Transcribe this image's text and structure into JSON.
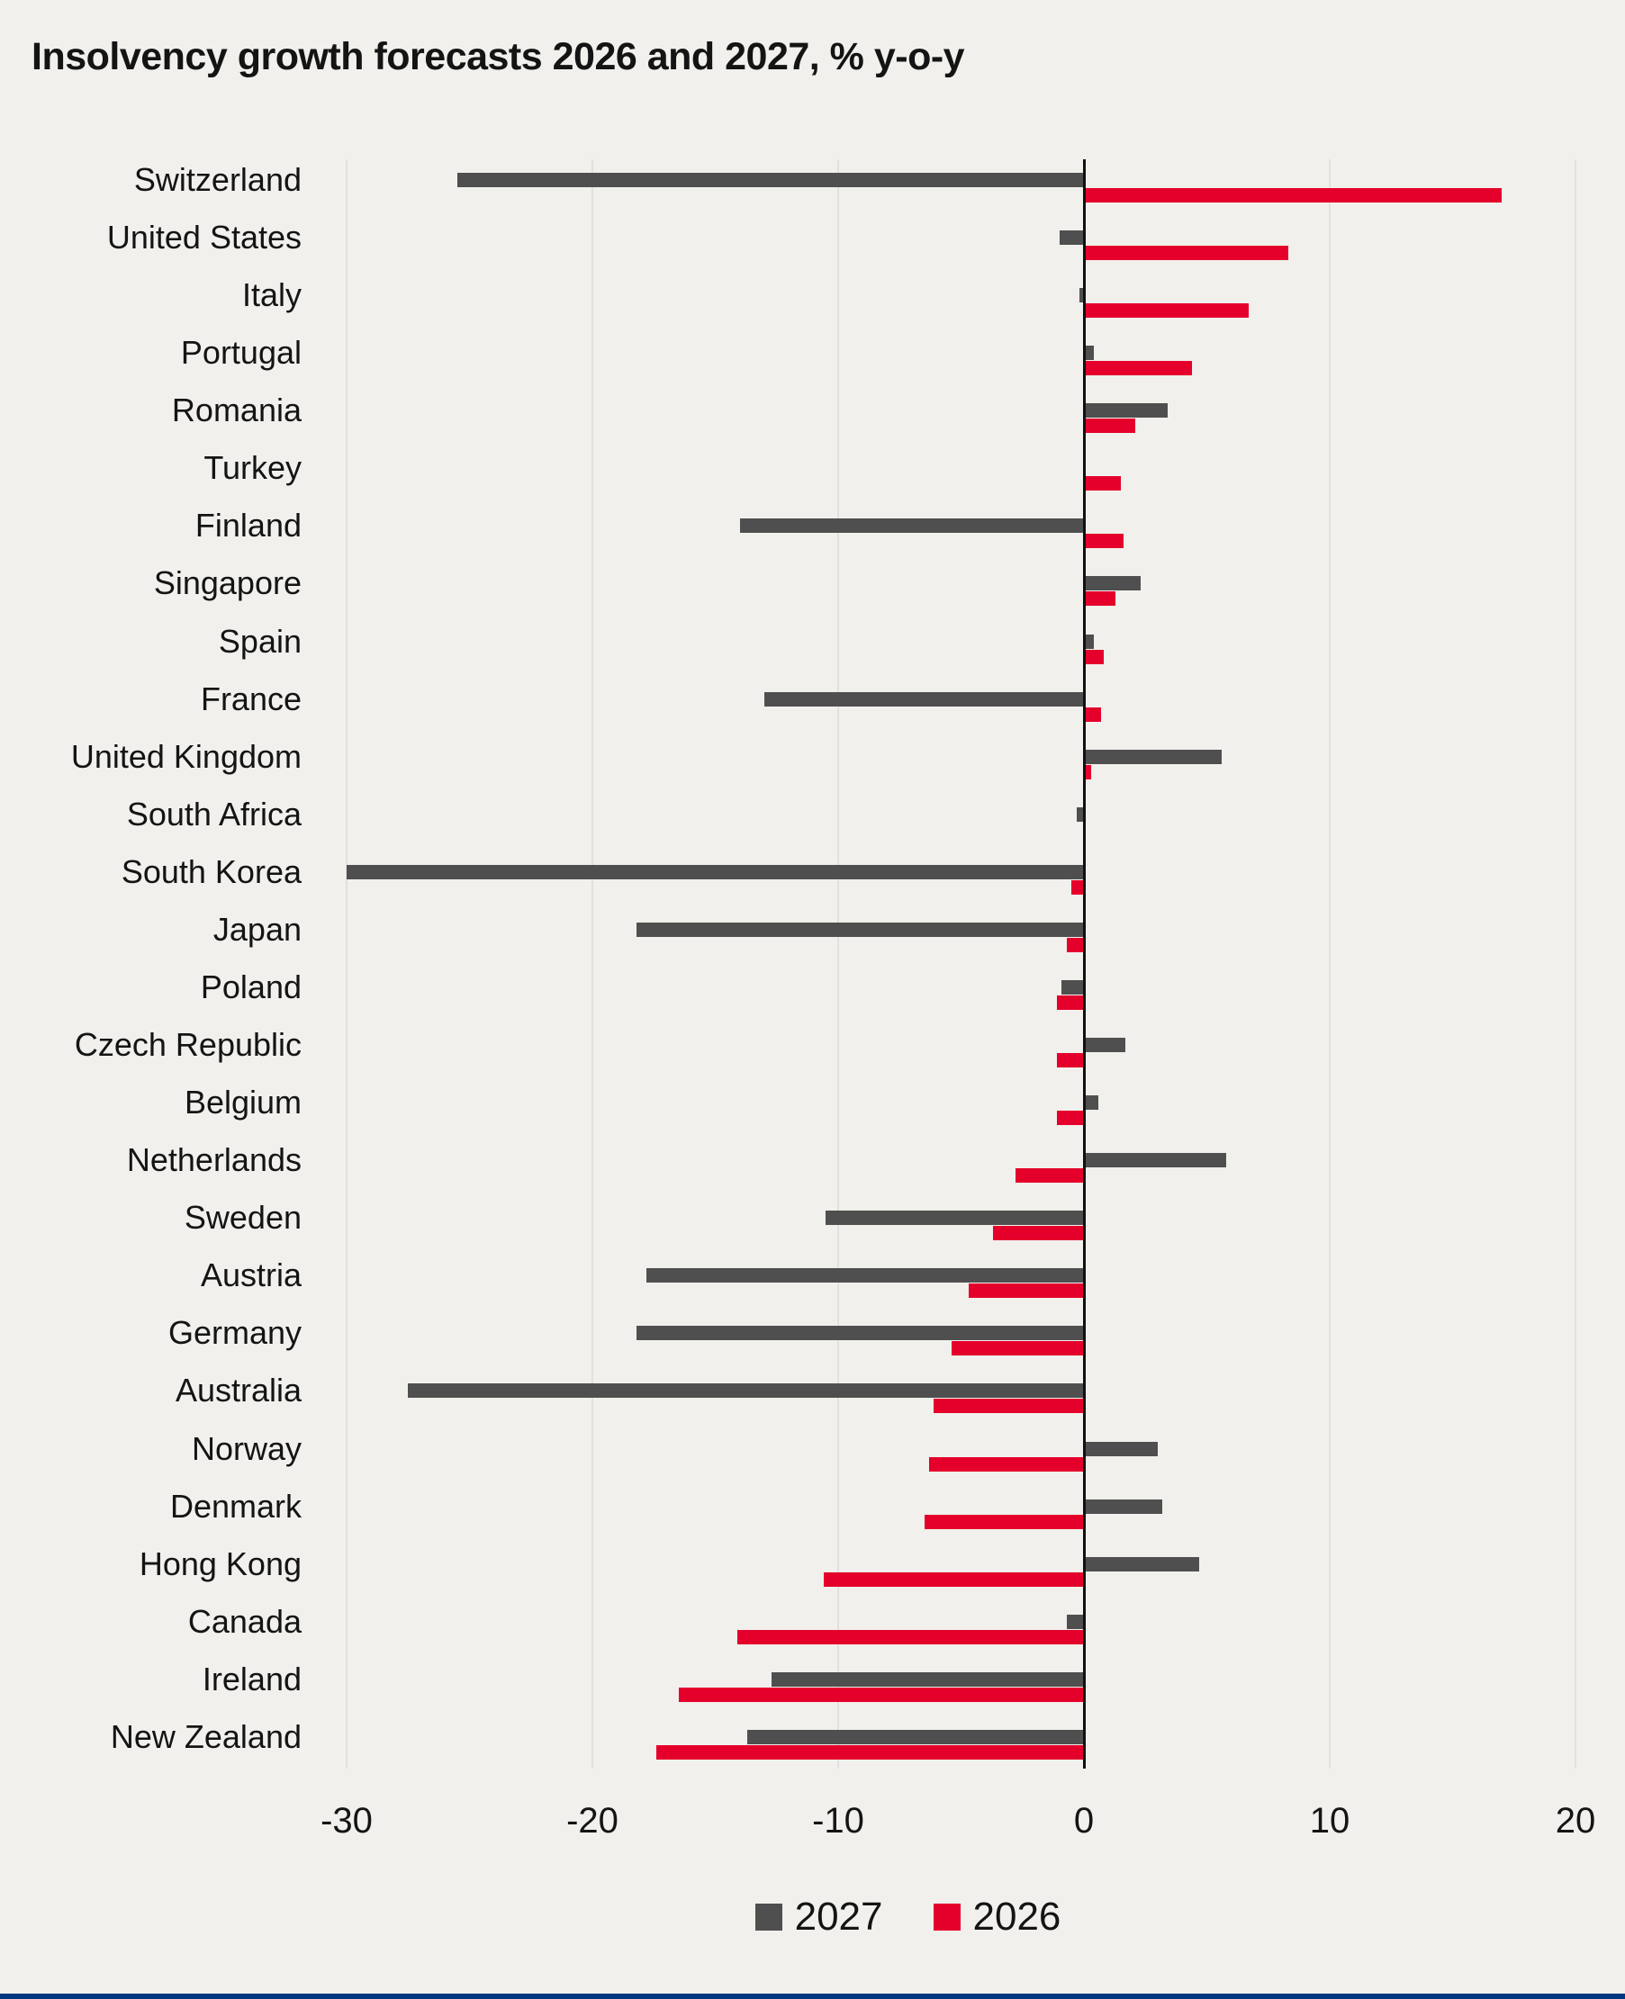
{
  "page": {
    "background_color": "#f1f0ec",
    "text_color": "#141414",
    "bottom_bar_color": "#003781"
  },
  "chart": {
    "title": "Insolvency growth forecasts 2026 and 2027, % y-o-y",
    "axis": {
      "min": -30,
      "max": 20,
      "tick_labels": [
        "-30",
        "-20",
        "-10",
        "0",
        "10",
        "20"
      ],
      "tick_values": [
        -30,
        -20,
        -10,
        0,
        10,
        20
      ],
      "gridline_color": "#e3e1dd",
      "zero_line_color": "#111111"
    },
    "legend": {
      "position": "bottom",
      "items": [
        {
          "label": "2027",
          "color": "#4f4f4f"
        },
        {
          "label": "2026",
          "color": "#e4002b"
        }
      ]
    }
  },
  "chart_data": {
    "type": "bar",
    "orientation": "horizontal",
    "title": "Insolvency growth forecasts 2026 and 2027, % y-o-y",
    "xlabel": "% y-o-y",
    "ylabel": "",
    "xlim": [
      -30,
      20
    ],
    "grid": true,
    "legend_position": "bottom",
    "categories": [
      "Switzerland",
      "United States",
      "Italy",
      "Portugal",
      "Romania",
      "Turkey",
      "Finland",
      "Singapore",
      "Spain",
      "France",
      "United Kingdom",
      "South Africa",
      "South Korea",
      "Japan",
      "Poland",
      "Czech Republic",
      "Belgium",
      "Netherlands",
      "Sweden",
      "Austria",
      "Germany",
      "Australia",
      "Norway",
      "Denmark",
      "Hong Kong",
      "Canada",
      "Ireland",
      "New Zealand"
    ],
    "series": [
      {
        "name": "2027",
        "color": "#4f4f4f",
        "values": [
          -25.5,
          -1,
          -0.2,
          0.4,
          3.4,
          0,
          -14,
          2.3,
          0.4,
          -13,
          5.6,
          -0.3,
          -30,
          -18.2,
          -0.9,
          1.7,
          0.6,
          5.8,
          -10.5,
          -17.8,
          -18.2,
          -27.5,
          3,
          3.2,
          4.7,
          -0.7,
          -12.7,
          -13.7
        ]
      },
      {
        "name": "2026",
        "color": "#e4002b",
        "values": [
          17,
          8.3,
          6.7,
          4.4,
          2.1,
          1.5,
          1.6,
          1.3,
          0.8,
          0.7,
          0.3,
          0,
          -0.5,
          -0.7,
          -1.1,
          -1.1,
          -1.1,
          -2.8,
          -3.7,
          -4.7,
          -5.4,
          -6.1,
          -6.3,
          -6.5,
          -10.6,
          -14.1,
          -16.5,
          -17.4
        ]
      }
    ]
  }
}
